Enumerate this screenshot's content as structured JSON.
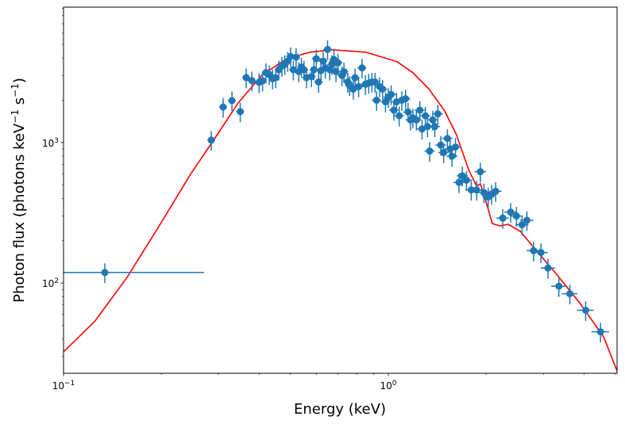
{
  "chart_data": {
    "type": "scatter",
    "title": "",
    "xlabel": "Energy (keV)",
    "ylabel": {
      "pre": "Photon flux (photons keV",
      "sup1": "−1",
      "mid": " s",
      "sup2": "−1",
      "post": ")"
    },
    "xscale": "log",
    "yscale": "log",
    "xlim": [
      0.1,
      5.06
    ],
    "ylim": [
      22.8,
      9200
    ],
    "grid": false,
    "x_ticks": [
      {
        "value": 0.1,
        "base": "10",
        "exp": "−1"
      },
      {
        "value": 1,
        "base": "10",
        "exp": "0"
      }
    ],
    "y_ticks": [
      {
        "value": 100,
        "base": "10",
        "exp": "2"
      },
      {
        "value": 1000,
        "base": "10",
        "exp": "3"
      }
    ],
    "colors": {
      "data": "#1f77b4",
      "model": "#ff0000"
    },
    "series": [
      {
        "name": "data",
        "style": "errorbar",
        "yerr_frac": 0.16,
        "xerr_frac": 0.025,
        "first_point_xerr": [
          0.1,
          0.271
        ],
        "points": [
          [
            0.134,
            119
          ],
          [
            0.285,
            1040
          ],
          [
            0.31,
            1790
          ],
          [
            0.33,
            1990
          ],
          [
            0.35,
            1660
          ],
          [
            0.365,
            2900
          ],
          [
            0.38,
            2760
          ],
          [
            0.4,
            2680
          ],
          [
            0.41,
            2750
          ],
          [
            0.42,
            3150
          ],
          [
            0.43,
            3050
          ],
          [
            0.44,
            2850
          ],
          [
            0.45,
            2900
          ],
          [
            0.46,
            3300
          ],
          [
            0.47,
            3500
          ],
          [
            0.48,
            3600
          ],
          [
            0.49,
            3800
          ],
          [
            0.5,
            4100
          ],
          [
            0.51,
            3300
          ],
          [
            0.52,
            4050
          ],
          [
            0.53,
            3200
          ],
          [
            0.54,
            3450
          ],
          [
            0.55,
            3300
          ],
          [
            0.56,
            2900
          ],
          [
            0.58,
            2950
          ],
          [
            0.59,
            3300
          ],
          [
            0.6,
            3950
          ],
          [
            0.61,
            2700
          ],
          [
            0.62,
            3250
          ],
          [
            0.63,
            3800
          ],
          [
            0.64,
            3400
          ],
          [
            0.65,
            4600
          ],
          [
            0.66,
            3300
          ],
          [
            0.67,
            3600
          ],
          [
            0.68,
            3900
          ],
          [
            0.69,
            3200
          ],
          [
            0.7,
            3700
          ],
          [
            0.72,
            3000
          ],
          [
            0.73,
            3200
          ],
          [
            0.75,
            2700
          ],
          [
            0.76,
            2550
          ],
          [
            0.78,
            2400
          ],
          [
            0.79,
            2900
          ],
          [
            0.81,
            2500
          ],
          [
            0.83,
            3400
          ],
          [
            0.85,
            2600
          ],
          [
            0.87,
            2650
          ],
          [
            0.89,
            2700
          ],
          [
            0.91,
            2700
          ],
          [
            0.92,
            2000
          ],
          [
            0.94,
            2500
          ],
          [
            0.96,
            2400
          ],
          [
            0.98,
            1950
          ],
          [
            1.0,
            2100
          ],
          [
            1.02,
            2200
          ],
          [
            1.04,
            1700
          ],
          [
            1.06,
            1950
          ],
          [
            1.08,
            1550
          ],
          [
            1.1,
            2000
          ],
          [
            1.13,
            2050
          ],
          [
            1.15,
            1650
          ],
          [
            1.17,
            1450
          ],
          [
            1.19,
            1500
          ],
          [
            1.22,
            1450
          ],
          [
            1.25,
            1700
          ],
          [
            1.27,
            1250
          ],
          [
            1.3,
            1550
          ],
          [
            1.32,
            1300
          ],
          [
            1.34,
            870
          ],
          [
            1.37,
            1450
          ],
          [
            1.39,
            1300
          ],
          [
            1.42,
            1600
          ],
          [
            1.45,
            960
          ],
          [
            1.48,
            850
          ],
          [
            1.52,
            1070
          ],
          [
            1.55,
            900
          ],
          [
            1.57,
            800
          ],
          [
            1.61,
            930
          ],
          [
            1.65,
            520
          ],
          [
            1.69,
            580
          ],
          [
            1.74,
            540
          ],
          [
            1.8,
            460
          ],
          [
            1.87,
            460
          ],
          [
            1.92,
            620
          ],
          [
            1.97,
            440
          ],
          [
            2.03,
            410
          ],
          [
            2.08,
            430
          ],
          [
            2.14,
            450
          ],
          [
            2.25,
            290
          ],
          [
            2.38,
            320
          ],
          [
            2.48,
            300
          ],
          [
            2.58,
            260
          ],
          [
            2.67,
            280
          ],
          [
            2.8,
            170
          ],
          [
            2.95,
            165
          ],
          [
            3.1,
            128
          ],
          [
            3.35,
            95
          ],
          [
            3.62,
            84
          ],
          [
            4.05,
            64
          ],
          [
            4.5,
            45
          ]
        ]
      },
      {
        "name": "model",
        "style": "line",
        "points": [
          [
            0.1,
            32.4
          ],
          [
            0.125,
            53.7
          ],
          [
            0.157,
            110
          ],
          [
            0.197,
            255
          ],
          [
            0.246,
            594
          ],
          [
            0.292,
            1067
          ],
          [
            0.345,
            1915
          ],
          [
            0.408,
            3020
          ],
          [
            0.484,
            3917
          ],
          [
            0.573,
            4400
          ],
          [
            0.678,
            4570
          ],
          [
            0.85,
            4400
          ],
          [
            1.064,
            3765
          ],
          [
            1.19,
            3139
          ],
          [
            1.33,
            2421
          ],
          [
            1.49,
            1682
          ],
          [
            1.62,
            1138
          ],
          [
            1.77,
            634
          ],
          [
            1.87,
            490
          ],
          [
            1.92,
            509
          ],
          [
            2.0,
            377
          ],
          [
            2.09,
            265
          ],
          [
            2.21,
            255
          ],
          [
            2.34,
            262
          ],
          [
            2.55,
            233
          ],
          [
            2.77,
            185
          ],
          [
            3.28,
            117
          ],
          [
            3.88,
            72.4
          ],
          [
            4.6,
            41.4
          ],
          [
            5.06,
            23.7
          ]
        ]
      }
    ]
  }
}
